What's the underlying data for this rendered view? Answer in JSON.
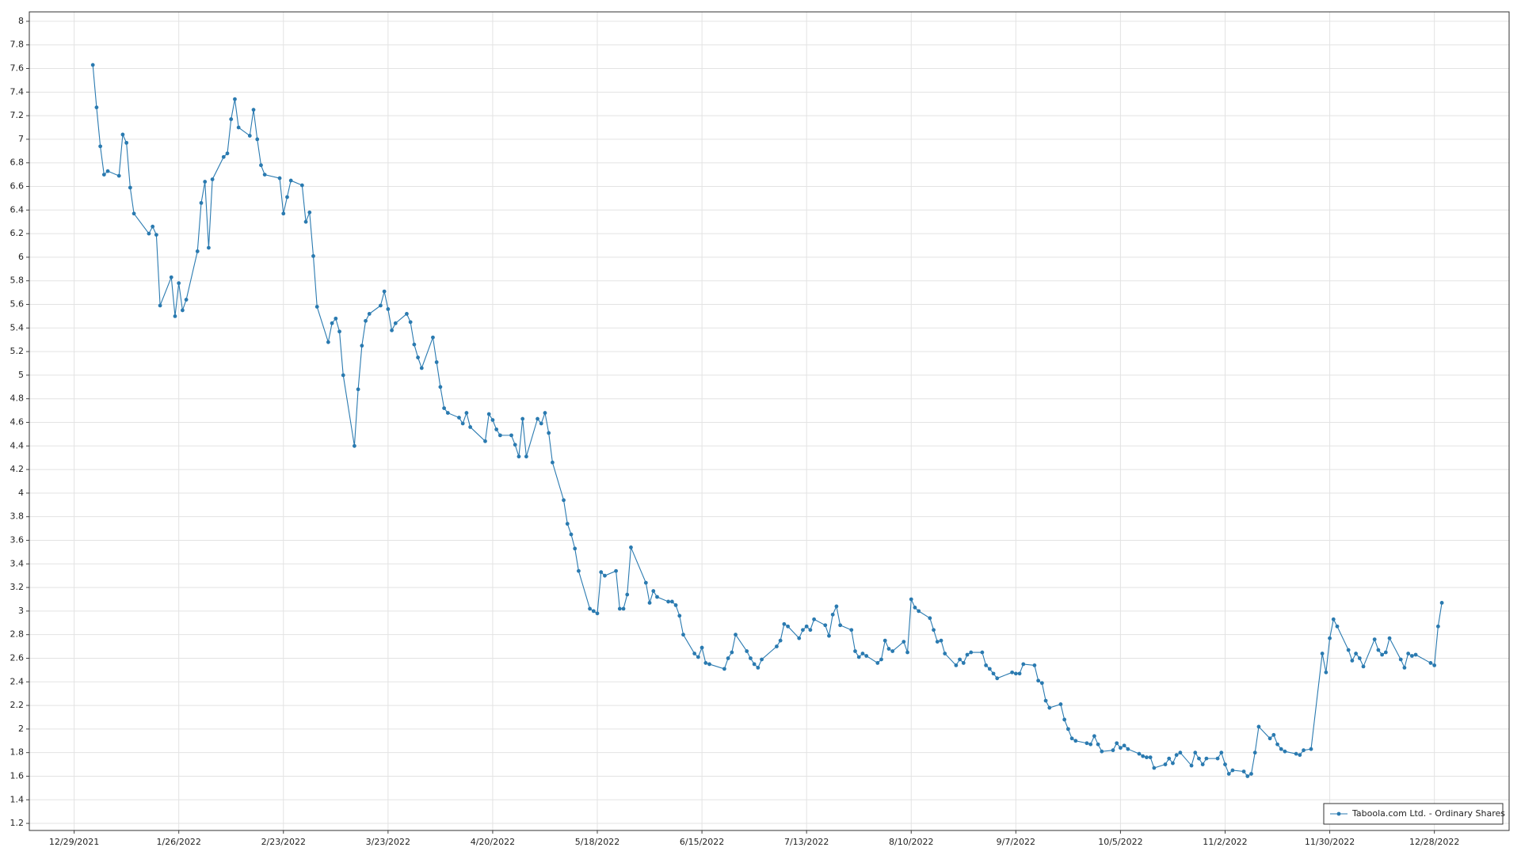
{
  "chart_data": {
    "type": "line",
    "grid": true,
    "legend_loc": "lower right",
    "xlim": [
      "12/17/2021",
      "1/17/2023"
    ],
    "xticks": [
      "12/29/2021",
      "1/26/2022",
      "2/23/2022",
      "3/23/2022",
      "4/20/2022",
      "5/18/2022",
      "6/15/2022",
      "7/13/2022",
      "8/10/2022",
      "9/7/2022",
      "10/5/2022",
      "11/2/2022",
      "11/30/2022",
      "12/28/2022"
    ],
    "ylim": [
      1.14,
      8.08
    ],
    "yticks": [
      1.2,
      1.4,
      1.6,
      1.8,
      2,
      2.2,
      2.4,
      2.6,
      2.8,
      3,
      3.2,
      3.4,
      3.6,
      3.8,
      4,
      4.2,
      4.4,
      4.6,
      4.8,
      5,
      5.2,
      5.4,
      5.6,
      5.8,
      6,
      6.2,
      6.4,
      6.6,
      6.8,
      7,
      7.2,
      7.4,
      7.6,
      7.8,
      8
    ],
    "x": [
      "1/3/2022",
      "1/4/2022",
      "1/5/2022",
      "1/6/2022",
      "1/7/2022",
      "1/10/2022",
      "1/11/2022",
      "1/12/2022",
      "1/13/2022",
      "1/14/2022",
      "1/18/2022",
      "1/19/2022",
      "1/20/2022",
      "1/21/2022",
      "1/24/2022",
      "1/25/2022",
      "1/26/2022",
      "1/27/2022",
      "1/28/2022",
      "1/31/2022",
      "2/1/2022",
      "2/2/2022",
      "2/3/2022",
      "2/4/2022",
      "2/7/2022",
      "2/8/2022",
      "2/9/2022",
      "2/10/2022",
      "2/11/2022",
      "2/14/2022",
      "2/15/2022",
      "2/16/2022",
      "2/17/2022",
      "2/18/2022",
      "2/22/2022",
      "2/23/2022",
      "2/24/2022",
      "2/25/2022",
      "2/28/2022",
      "3/1/2022",
      "3/2/2022",
      "3/3/2022",
      "3/4/2022",
      "3/7/2022",
      "3/8/2022",
      "3/9/2022",
      "3/10/2022",
      "3/11/2022",
      "3/14/2022",
      "3/15/2022",
      "3/16/2022",
      "3/17/2022",
      "3/18/2022",
      "3/21/2022",
      "3/22/2022",
      "3/23/2022",
      "3/24/2022",
      "3/25/2022",
      "3/28/2022",
      "3/29/2022",
      "3/30/2022",
      "3/31/2022",
      "4/1/2022",
      "4/4/2022",
      "4/5/2022",
      "4/6/2022",
      "4/7/2022",
      "4/8/2022",
      "4/11/2022",
      "4/12/2022",
      "4/13/2022",
      "4/14/2022",
      "4/18/2022",
      "4/19/2022",
      "4/20/2022",
      "4/21/2022",
      "4/22/2022",
      "4/25/2022",
      "4/26/2022",
      "4/27/2022",
      "4/28/2022",
      "4/29/2022",
      "5/2/2022",
      "5/3/2022",
      "5/4/2022",
      "5/5/2022",
      "5/6/2022",
      "5/9/2022",
      "5/10/2022",
      "5/11/2022",
      "5/12/2022",
      "5/13/2022",
      "5/16/2022",
      "5/17/2022",
      "5/18/2022",
      "5/19/2022",
      "5/20/2022",
      "5/23/2022",
      "5/24/2022",
      "5/25/2022",
      "5/26/2022",
      "5/27/2022",
      "5/31/2022",
      "6/1/2022",
      "6/2/2022",
      "6/3/2022",
      "6/6/2022",
      "6/7/2022",
      "6/8/2022",
      "6/9/2022",
      "6/10/2022",
      "6/13/2022",
      "6/14/2022",
      "6/15/2022",
      "6/16/2022",
      "6/17/2022",
      "6/21/2022",
      "6/22/2022",
      "6/23/2022",
      "6/24/2022",
      "6/27/2022",
      "6/28/2022",
      "6/29/2022",
      "6/30/2022",
      "7/1/2022",
      "7/5/2022",
      "7/6/2022",
      "7/7/2022",
      "7/8/2022",
      "7/11/2022",
      "7/12/2022",
      "7/13/2022",
      "7/14/2022",
      "7/15/2022",
      "7/18/2022",
      "7/19/2022",
      "7/20/2022",
      "7/21/2022",
      "7/22/2022",
      "7/25/2022",
      "7/26/2022",
      "7/27/2022",
      "7/28/2022",
      "7/29/2022",
      "8/1/2022",
      "8/2/2022",
      "8/3/2022",
      "8/4/2022",
      "8/5/2022",
      "8/8/2022",
      "8/9/2022",
      "8/10/2022",
      "8/11/2022",
      "8/12/2022",
      "8/15/2022",
      "8/16/2022",
      "8/17/2022",
      "8/18/2022",
      "8/19/2022",
      "8/22/2022",
      "8/23/2022",
      "8/24/2022",
      "8/25/2022",
      "8/26/2022",
      "8/29/2022",
      "8/30/2022",
      "8/31/2022",
      "9/1/2022",
      "9/2/2022",
      "9/6/2022",
      "9/7/2022",
      "9/8/2022",
      "9/9/2022",
      "9/12/2022",
      "9/13/2022",
      "9/14/2022",
      "9/15/2022",
      "9/16/2022",
      "9/19/2022",
      "9/20/2022",
      "9/21/2022",
      "9/22/2022",
      "9/23/2022",
      "9/26/2022",
      "9/27/2022",
      "9/28/2022",
      "9/29/2022",
      "9/30/2022",
      "10/3/2022",
      "10/4/2022",
      "10/5/2022",
      "10/6/2022",
      "10/7/2022",
      "10/10/2022",
      "10/11/2022",
      "10/12/2022",
      "10/13/2022",
      "10/14/2022",
      "10/17/2022",
      "10/18/2022",
      "10/19/2022",
      "10/20/2022",
      "10/21/2022",
      "10/24/2022",
      "10/25/2022",
      "10/26/2022",
      "10/27/2022",
      "10/28/2022",
      "10/31/2022",
      "11/1/2022",
      "11/2/2022",
      "11/3/2022",
      "11/4/2022",
      "11/7/2022",
      "11/8/2022",
      "11/9/2022",
      "11/10/2022",
      "11/11/2022",
      "11/14/2022",
      "11/15/2022",
      "11/16/2022",
      "11/17/2022",
      "11/18/2022",
      "11/21/2022",
      "11/22/2022",
      "11/23/2022",
      "11/25/2022",
      "11/28/2022",
      "11/29/2022",
      "11/30/2022",
      "12/1/2022",
      "12/2/2022",
      "12/5/2022",
      "12/6/2022",
      "12/7/2022",
      "12/8/2022",
      "12/9/2022",
      "12/12/2022",
      "12/13/2022",
      "12/14/2022",
      "12/15/2022",
      "12/16/2022",
      "12/19/2022",
      "12/20/2022",
      "12/21/2022",
      "12/22/2022",
      "12/23/2022",
      "12/27/2022",
      "12/28/2022",
      "12/29/2022",
      "12/30/2022"
    ],
    "series": [
      {
        "name": "Taboola.com Ltd. - Ordinary Shares",
        "color": "#2a7ab0",
        "values": [
          7.63,
          7.27,
          6.94,
          6.7,
          6.73,
          6.69,
          7.04,
          6.97,
          6.59,
          6.37,
          6.2,
          6.26,
          6.19,
          5.59,
          5.83,
          5.5,
          5.78,
          5.55,
          5.64,
          6.05,
          6.46,
          6.64,
          6.08,
          6.66,
          6.85,
          6.88,
          7.17,
          7.34,
          7.1,
          7.03,
          7.25,
          7.0,
          6.78,
          6.7,
          6.67,
          6.37,
          6.51,
          6.65,
          6.61,
          6.3,
          6.38,
          6.01,
          5.58,
          5.28,
          5.44,
          5.48,
          5.37,
          5.0,
          4.4,
          4.88,
          5.25,
          5.46,
          5.52,
          5.59,
          5.71,
          5.56,
          5.38,
          5.44,
          5.52,
          5.45,
          5.26,
          5.15,
          5.06,
          5.32,
          5.11,
          4.9,
          4.72,
          4.68,
          4.64,
          4.59,
          4.68,
          4.56,
          4.44,
          4.67,
          4.62,
          4.54,
          4.49,
          4.49,
          4.41,
          4.31,
          4.63,
          4.31,
          4.63,
          4.59,
          4.68,
          4.51,
          4.26,
          3.94,
          3.74,
          3.65,
          3.53,
          3.34,
          3.02,
          3.0,
          2.98,
          3.33,
          3.3,
          3.34,
          3.02,
          3.02,
          3.14,
          3.54,
          3.24,
          3.07,
          3.17,
          3.12,
          3.08,
          3.08,
          3.05,
          2.96,
          2.8,
          2.64,
          2.61,
          2.69,
          2.56,
          2.55,
          2.51,
          2.6,
          2.65,
          2.8,
          2.66,
          2.6,
          2.55,
          2.52,
          2.59,
          2.7,
          2.75,
          2.89,
          2.87,
          2.77,
          2.84,
          2.87,
          2.84,
          2.93,
          2.88,
          2.79,
          2.97,
          3.04,
          2.88,
          2.84,
          2.66,
          2.61,
          2.64,
          2.62,
          2.56,
          2.59,
          2.75,
          2.68,
          2.66,
          2.74,
          2.65,
          3.1,
          3.03,
          3.0,
          2.94,
          2.84,
          2.74,
          2.75,
          2.64,
          2.54,
          2.59,
          2.56,
          2.63,
          2.65,
          2.65,
          2.54,
          2.51,
          2.47,
          2.43,
          2.48,
          2.47,
          2.47,
          2.55,
          2.54,
          2.41,
          2.39,
          2.24,
          2.18,
          2.21,
          2.08,
          2.0,
          1.92,
          1.9,
          1.88,
          1.87,
          1.94,
          1.87,
          1.81,
          1.82,
          1.88,
          1.84,
          1.86,
          1.83,
          1.79,
          1.77,
          1.76,
          1.76,
          1.67,
          1.7,
          1.75,
          1.71,
          1.78,
          1.8,
          1.69,
          1.8,
          1.75,
          1.7,
          1.75,
          1.75,
          1.8,
          1.7,
          1.62,
          1.65,
          1.64,
          1.6,
          1.62,
          1.8,
          2.02,
          1.92,
          1.95,
          1.87,
          1.83,
          1.81,
          1.79,
          1.78,
          1.82,
          1.83,
          2.64,
          2.48,
          2.77,
          2.93,
          2.87,
          2.67,
          2.58,
          2.64,
          2.6,
          2.53,
          2.76,
          2.67,
          2.63,
          2.65,
          2.77,
          2.59,
          2.52,
          2.64,
          2.62,
          2.63,
          2.56,
          2.54,
          2.87,
          3.07
        ]
      }
    ]
  }
}
